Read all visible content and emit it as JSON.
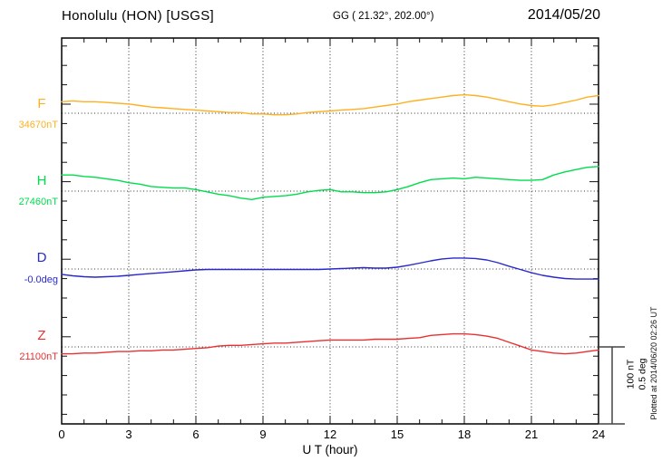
{
  "header": {
    "title": "Honolulu (HON)  [USGS]",
    "gg_coordinates": "GG ( 21.32°, 202.00°)",
    "date": "2014/05/20"
  },
  "side_note": {
    "plotted_at": "Plotted at 2014/06/20 02:26 UT"
  },
  "scale_bar": {
    "nt_label": "100 nT",
    "deg_label": "0.5 deg"
  },
  "x_axis": {
    "label": "U T (hour)",
    "tick_labels": [
      "0",
      "3",
      "6",
      "9",
      "12",
      "15",
      "18",
      "21",
      "24"
    ]
  },
  "chart_data": {
    "type": "line",
    "title": "Honolulu (HON)  [USGS]",
    "subtitle": "GG ( 21.32°, 202.00°)",
    "date": "2014/05/20",
    "xlabel": "U T (hour)",
    "x_range_hours": [
      0,
      24
    ],
    "x_tick_hours": [
      0,
      3,
      6,
      9,
      12,
      15,
      18,
      21,
      24
    ],
    "grid": "dotted vertical gridlines every 3 hours; dotted horizontal baseline per trace; inner minor ticks hourly (x) and every 25 nT (y)",
    "legend_position": "left margin (trace name above baseline value)",
    "scale_reference": {
      "bar_equals_nT": "100 nT",
      "bar_equals_deg": "0.5 deg"
    },
    "x_hours": [
      0,
      0.5,
      1,
      1.5,
      2,
      2.5,
      3,
      3.5,
      4,
      4.5,
      5,
      5.5,
      6,
      6.5,
      7,
      7.5,
      8,
      8.5,
      9,
      9.5,
      10,
      10.5,
      11,
      11.5,
      12,
      12.5,
      13,
      13.5,
      14,
      14.5,
      15,
      15.5,
      16,
      16.5,
      17,
      17.5,
      18,
      18.5,
      19,
      19.5,
      20,
      20.5,
      21,
      21.5,
      22,
      22.5,
      23,
      23.5,
      24
    ],
    "series": [
      {
        "name": "F",
        "unit": "nT",
        "color": "#FFB020",
        "baseline": 34670,
        "baseline_label": "34670nT",
        "values": [
          34685,
          34686,
          34685,
          34685,
          34684,
          34683,
          34682,
          34680,
          34678,
          34677,
          34676,
          34675,
          34674,
          34673,
          34672,
          34671,
          34671,
          34669,
          34669,
          34668,
          34668,
          34669,
          34671,
          34672,
          34673,
          34674,
          34675,
          34676,
          34678,
          34680,
          34682,
          34685,
          34687,
          34689,
          34691,
          34693,
          34694,
          34693,
          34691,
          34688,
          34685,
          34682,
          34680,
          34679,
          34681,
          34684,
          34687,
          34691,
          34693
        ]
      },
      {
        "name": "H",
        "unit": "nT",
        "color": "#00DD4C",
        "baseline": 27460,
        "baseline_label": "27460nT",
        "values": [
          27481,
          27481,
          27479,
          27478,
          27476,
          27474,
          27471,
          27469,
          27466,
          27465,
          27464,
          27464,
          27462,
          27459,
          27456,
          27454,
          27451,
          27449,
          27452,
          27453,
          27454,
          27456,
          27459,
          27461,
          27462,
          27459,
          27459,
          27458,
          27458,
          27459,
          27462,
          27466,
          27471,
          27475,
          27476,
          27477,
          27476,
          27478,
          27477,
          27476,
          27475,
          27474,
          27474,
          27475,
          27481,
          27485,
          27488,
          27491,
          27492
        ]
      },
      {
        "name": "D",
        "unit": "deg",
        "color": "#2929CC",
        "baseline": 0,
        "baseline_label": "-0.0deg",
        "values": [
          -0.035,
          -0.044,
          -0.05,
          -0.053,
          -0.05,
          -0.047,
          -0.041,
          -0.035,
          -0.029,
          -0.024,
          -0.018,
          -0.012,
          -0.006,
          -0.003,
          -0.003,
          -0.003,
          -0.003,
          -0.003,
          -0.003,
          -0.003,
          -0.003,
          -0.003,
          -0.003,
          -0.003,
          0.0,
          0.003,
          0.006,
          0.009,
          0.006,
          0.006,
          0.012,
          0.024,
          0.038,
          0.053,
          0.065,
          0.071,
          0.071,
          0.068,
          0.059,
          0.041,
          0.018,
          -0.003,
          -0.024,
          -0.041,
          -0.053,
          -0.062,
          -0.065,
          -0.065,
          -0.065
        ]
      },
      {
        "name": "Z",
        "unit": "nT",
        "color": "#E93030",
        "baseline": 21100,
        "baseline_label": "21100nT",
        "values": [
          21091,
          21091,
          21092,
          21092,
          21093,
          21094,
          21094,
          21095,
          21095,
          21096,
          21096,
          21097,
          21098,
          21099,
          21101,
          21102,
          21102,
          21103,
          21104,
          21105,
          21105,
          21106,
          21107,
          21108,
          21109,
          21109,
          21109,
          21109,
          21110,
          21110,
          21110,
          21111,
          21112,
          21115,
          21116,
          21117,
          21117,
          21116,
          21114,
          21111,
          21106,
          21101,
          21096,
          21094,
          21092,
          21091,
          21092,
          21094,
          21096
        ]
      }
    ]
  }
}
